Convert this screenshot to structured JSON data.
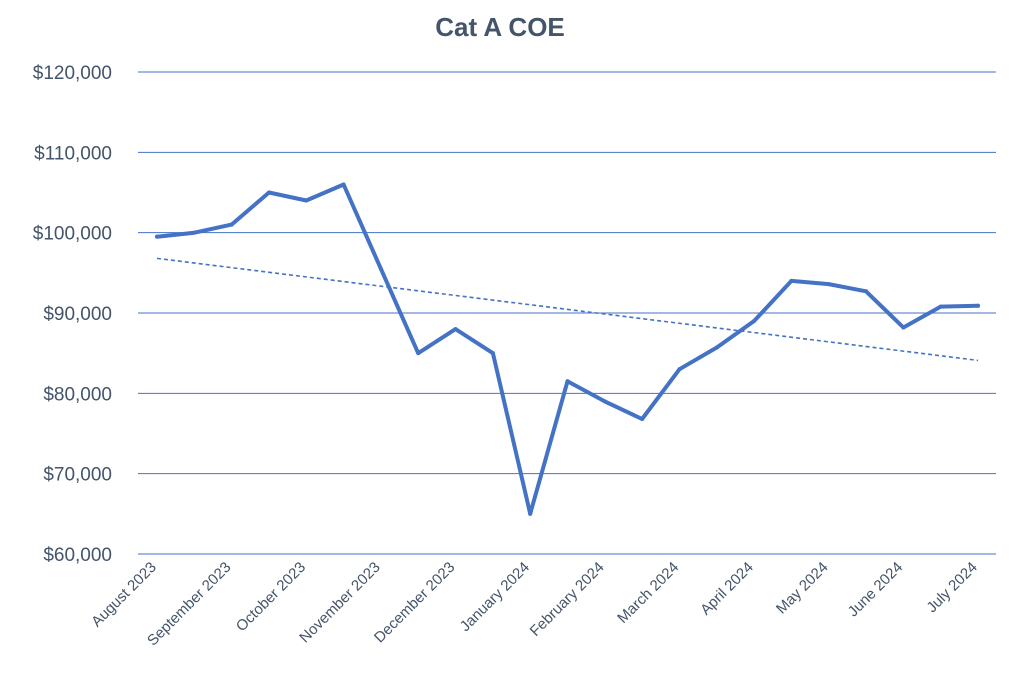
{
  "chart_data": {
    "type": "line",
    "title": "Cat A COE",
    "xlabel": "",
    "ylabel": "",
    "ylim": [
      60000,
      120000
    ],
    "y_ticks": [
      60000,
      70000,
      80000,
      90000,
      100000,
      110000,
      120000
    ],
    "y_tick_labels": [
      "$60,000",
      "$70,000",
      "$80,000",
      "$90,000",
      "$100,000",
      "$110,000",
      "$120,000"
    ],
    "x_tick_labels": [
      "August 2023",
      "September 2023",
      "October 2023",
      "November 2023",
      "December 2023",
      "January 2024",
      "February 2024",
      "March 2024",
      "April 2024",
      "May 2024",
      "June 2024",
      "July 2024"
    ],
    "grid": "horizontal",
    "legend": "none",
    "series": [
      {
        "values": [
          99500,
          100000,
          101000,
          105000,
          104000,
          106000,
          95500,
          85000,
          88000,
          85000,
          65000,
          81500,
          79000,
          76800,
          83000,
          85700,
          89000,
          94000,
          93600,
          92700,
          88200,
          90800,
          90900
        ],
        "color": "#4472c4"
      }
    ],
    "trendline": {
      "type": "linear",
      "style": "dashed",
      "start": 96800,
      "end": 84100,
      "color": "#4472c4"
    },
    "colors": {
      "line": "#4472c4",
      "grid": "#4472c4",
      "text": "#44546a"
    }
  }
}
